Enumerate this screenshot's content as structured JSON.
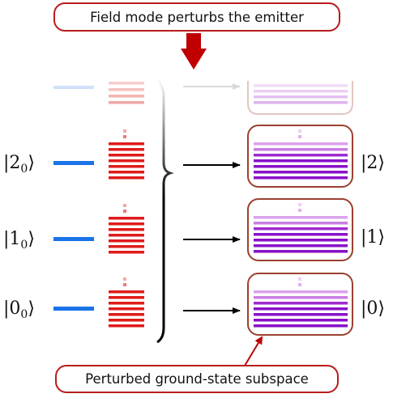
{
  "top_caption": "Field mode perturbs the emitter",
  "bottom_caption": "Perturbed ground-state subspace",
  "left_states": [
    {
      "ket": "|2",
      "sub": "0",
      "close": "⟩"
    },
    {
      "ket": "|1",
      "sub": "0",
      "close": "⟩"
    },
    {
      "ket": "|0",
      "sub": "0",
      "close": "⟩"
    }
  ],
  "right_states": [
    "|2⟩",
    "|1⟩",
    "|0⟩"
  ],
  "colors": {
    "emitter_level": "#1a73e8",
    "field_stack": "#e01b1b",
    "perturbed_stack": "#8a10c8",
    "perturbed_light": "#dba2ec",
    "box_border": "#9c4030",
    "callout_border": "#b81c1c",
    "big_arrow": "#c00000"
  }
}
